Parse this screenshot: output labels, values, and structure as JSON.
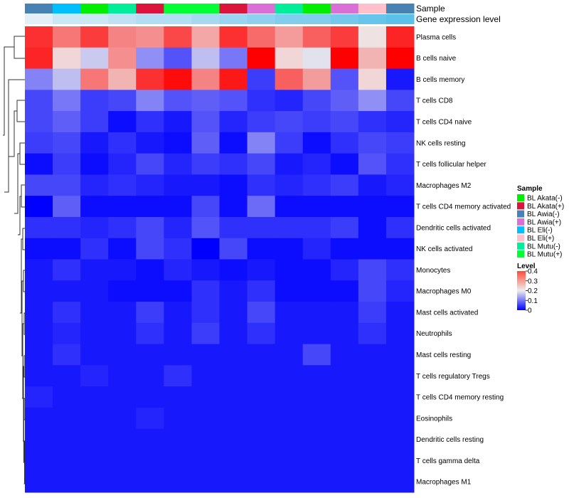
{
  "chart_data": {
    "type": "heatmap",
    "title": "",
    "annotation_labels": [
      "Sample",
      "Gene expression level"
    ],
    "legend_sample": {
      "title": "Sample",
      "items": [
        {
          "label": "BL Akata(-)",
          "color": "#00ee00"
        },
        {
          "label": "BL Akata(+)",
          "color": "#dc143c"
        },
        {
          "label": "BL Awia(-)",
          "color": "#4682b4"
        },
        {
          "label": "BL Awia(+)",
          "color": "#da70d6"
        },
        {
          "label": "BL Eli(-)",
          "color": "#00bfff"
        },
        {
          "label": "BL Eli(+)",
          "color": "#ffc0cb"
        },
        {
          "label": "BL Mutu(-)",
          "color": "#00ee99"
        },
        {
          "label": "BL Mutu(+)",
          "color": "#00ff33"
        }
      ]
    },
    "legend_level": {
      "title": "Level",
      "ticks": [
        "0.4",
        "0.3",
        "0.2",
        "0.1",
        "0"
      ],
      "min": 0,
      "max": 0.4,
      "low_color": "#0000ff",
      "mid_color": "#eeeeee",
      "high_color": "#ff0000"
    },
    "sample_annotation": [
      "BL Awia(-)",
      "BL Eli(-)",
      "BL Akata(-)",
      "BL Mutu(-)",
      "BL Akata(+)",
      "BL Mutu(+)",
      "BL Mutu(+)",
      "BL Akata(+)",
      "BL Awia(+)",
      "BL Mutu(-)",
      "BL Akata(-)",
      "BL Awia(+)",
      "BL Eli(+)",
      "BL Awia(-)"
    ],
    "expression_annotation": [
      0.12,
      0.14,
      0.14,
      0.15,
      0.16,
      0.16,
      0.17,
      0.18,
      0.19,
      0.2,
      0.2,
      0.21,
      0.22,
      0.23
    ],
    "expression_annotation_colors": {
      "low": "#e4eef7",
      "high": "#5bc0ea"
    },
    "rows": [
      "Plasma cells",
      "B cells naive",
      "B cells memory",
      "T cells CD8",
      "T cells CD4 naive",
      "NK cells resting",
      "T cells follicular helper",
      "Macrophages M2",
      "T cells CD4 memory activated",
      "Dendritic cells activated",
      "NK cells activated",
      "Monocytes",
      "Macrophages M0",
      "Mast cells activated",
      "Neutrophils",
      "Mast cells resting",
      "T cells regulatory  Tregs",
      "T cells CD4 memory resting",
      "Eosinophils",
      "Dendritic cells resting",
      "T cells gamma delta",
      "Macrophages M1"
    ],
    "values": [
      [
        0.36,
        0.3,
        0.35,
        0.29,
        0.28,
        0.34,
        0.26,
        0.36,
        0.31,
        0.27,
        0.32,
        0.35,
        0.21,
        0.37
      ],
      [
        0.37,
        0.22,
        0.17,
        0.28,
        0.12,
        0.07,
        0.16,
        0.1,
        0.4,
        0.22,
        0.19,
        0.4,
        0.25,
        0.4
      ],
      [
        0.11,
        0.16,
        0.3,
        0.25,
        0.36,
        0.39,
        0.29,
        0.38,
        0.05,
        0.32,
        0.27,
        0.07,
        0.22,
        0.02
      ],
      [
        0.06,
        0.1,
        0.05,
        0.06,
        0.11,
        0.07,
        0.08,
        0.07,
        0.04,
        0.03,
        0.06,
        0.08,
        0.12,
        0.06
      ],
      [
        0.06,
        0.08,
        0.05,
        0.01,
        0.04,
        0.02,
        0.07,
        0.03,
        0.05,
        0.06,
        0.05,
        0.06,
        0.04,
        0.03
      ],
      [
        0.05,
        0.06,
        0.02,
        0.04,
        0.02,
        0.01,
        0.08,
        0.01,
        0.11,
        0.05,
        0.01,
        0.04,
        0.06,
        0.05
      ],
      [
        0.01,
        0.05,
        0.01,
        0.03,
        0.06,
        0.03,
        0.05,
        0.04,
        0.06,
        0.02,
        0.03,
        0.01,
        0.07,
        0.04
      ],
      [
        0.06,
        0.06,
        0.03,
        0.04,
        0.03,
        0.02,
        0.02,
        0.01,
        0.04,
        0.03,
        0.04,
        0.05,
        0.02,
        0.03
      ],
      [
        0.0,
        0.08,
        0.01,
        0.01,
        0.01,
        0.01,
        0.06,
        0.01,
        0.09,
        0.01,
        0.01,
        0.01,
        0.01,
        0.01
      ],
      [
        0.04,
        0.04,
        0.03,
        0.04,
        0.06,
        0.03,
        0.07,
        0.04,
        0.04,
        0.04,
        0.04,
        0.05,
        0.01,
        0.04
      ],
      [
        0.01,
        0.01,
        0.04,
        0.01,
        0.06,
        0.04,
        0.0,
        0.06,
        0.01,
        0.01,
        0.03,
        0.01,
        0.01,
        0.01
      ],
      [
        0.02,
        0.04,
        0.02,
        0.02,
        0.01,
        0.03,
        0.02,
        0.01,
        0.02,
        0.01,
        0.01,
        0.03,
        0.06,
        0.04
      ],
      [
        0.02,
        0.02,
        0.02,
        0.01,
        0.01,
        0.01,
        0.04,
        0.02,
        0.04,
        0.01,
        0.01,
        0.01,
        0.06,
        0.03
      ],
      [
        0.02,
        0.04,
        0.02,
        0.02,
        0.05,
        0.02,
        0.04,
        0.02,
        0.06,
        0.02,
        0.02,
        0.02,
        0.05,
        0.02
      ],
      [
        0.02,
        0.03,
        0.02,
        0.02,
        0.04,
        0.02,
        0.05,
        0.02,
        0.04,
        0.02,
        0.02,
        0.02,
        0.04,
        0.02
      ],
      [
        0.02,
        0.04,
        0.02,
        0.02,
        0.02,
        0.02,
        0.02,
        0.02,
        0.02,
        0.02,
        0.06,
        0.02,
        0.02,
        0.02
      ],
      [
        0.02,
        0.02,
        0.03,
        0.02,
        0.02,
        0.04,
        0.02,
        0.02,
        0.02,
        0.02,
        0.02,
        0.02,
        0.02,
        0.02
      ],
      [
        0.03,
        0.02,
        0.02,
        0.02,
        0.02,
        0.02,
        0.02,
        0.02,
        0.02,
        0.02,
        0.02,
        0.02,
        0.02,
        0.02
      ],
      [
        0.02,
        0.02,
        0.02,
        0.02,
        0.03,
        0.02,
        0.02,
        0.02,
        0.02,
        0.02,
        0.02,
        0.02,
        0.02,
        0.02
      ],
      [
        0.02,
        0.02,
        0.02,
        0.02,
        0.02,
        0.02,
        0.02,
        0.02,
        0.02,
        0.02,
        0.02,
        0.02,
        0.02,
        0.02
      ],
      [
        0.02,
        0.02,
        0.02,
        0.02,
        0.02,
        0.02,
        0.02,
        0.02,
        0.02,
        0.02,
        0.02,
        0.02,
        0.02,
        0.02
      ],
      [
        0.02,
        0.02,
        0.02,
        0.02,
        0.02,
        0.02,
        0.02,
        0.02,
        0.02,
        0.02,
        0.02,
        0.02,
        0.02,
        0.02
      ]
    ]
  }
}
